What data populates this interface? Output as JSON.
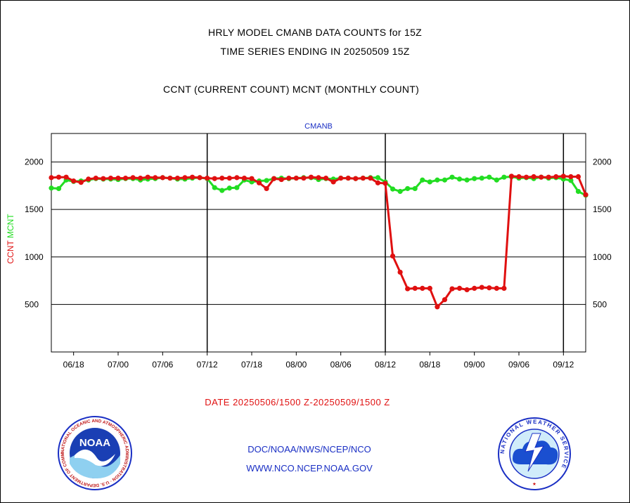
{
  "header": {
    "title_line1": "HRLY MODEL CMANB DATA COUNTS for 15Z",
    "title_line2": "TIME SERIES ENDING IN 20250509 15Z",
    "subtitle": "CCNT (CURRENT COUNT) MCNT (MONTHLY COUNT)"
  },
  "footer": {
    "date_range": "DATE 20250506/1500 Z-20250509/1500 Z",
    "credit_line1": "DOC/NOAA/NWS/NCEP/NCO",
    "credit_line2": "WWW.NCO.NCEP.NOAA.GOV"
  },
  "logos": {
    "noaa_wordmark": "NOAA",
    "noaa_ring_text": "NATIONAL OCEANIC AND ATMOSPHERIC ADMINISTRATION · U.S. DEPARTMENT OF COMMERCE",
    "nws_ring_text": "NATIONAL WEATHER SERVICE"
  },
  "colors": {
    "ccnt": "#e01010",
    "mcnt": "#22dd22",
    "plot_title": "#1a2fc4",
    "text": "#000000"
  },
  "chart_data": {
    "type": "line",
    "title": "CMANB",
    "ylabel_series": [
      "CCNT",
      "MCNT"
    ],
    "ylim": [
      0,
      2300
    ],
    "yticks": [
      500,
      1000,
      1500,
      2000
    ],
    "y_tick_labels": [
      "500",
      "1000",
      "1500",
      "2000"
    ],
    "x_tick_labels": [
      "06/18",
      "07/00",
      "07/06",
      "07/12",
      "07/18",
      "08/00",
      "08/06",
      "08/12",
      "08/18",
      "09/00",
      "09/06",
      "09/12"
    ],
    "x_range_hours": [
      0,
      72
    ],
    "x_tick_hours": [
      3,
      9,
      15,
      21,
      27,
      33,
      39,
      45,
      51,
      57,
      63,
      69
    ],
    "day_boundary_hours": [
      21,
      45,
      69
    ],
    "grid": "horizontal",
    "series": [
      {
        "name": "CCNT",
        "color": "#e01010",
        "x": [
          0,
          1,
          2,
          3,
          4,
          5,
          6,
          7,
          8,
          9,
          10,
          11,
          12,
          13,
          14,
          15,
          16,
          17,
          18,
          19,
          20,
          21,
          22,
          23,
          24,
          25,
          26,
          27,
          28,
          29,
          30,
          31,
          32,
          33,
          34,
          35,
          36,
          37,
          38,
          39,
          40,
          41,
          42,
          43,
          44,
          45,
          46,
          47,
          48,
          49,
          50,
          51,
          52,
          53,
          54,
          55,
          56,
          57,
          58,
          59,
          60,
          61,
          62,
          63,
          64,
          65,
          66,
          67,
          68,
          69,
          70,
          71,
          72
        ],
        "values": [
          1835,
          1840,
          1840,
          1800,
          1785,
          1820,
          1830,
          1825,
          1830,
          1830,
          1830,
          1835,
          1830,
          1840,
          1835,
          1835,
          1830,
          1830,
          1835,
          1840,
          1835,
          1830,
          1825,
          1830,
          1830,
          1835,
          1830,
          1825,
          1780,
          1720,
          1825,
          1815,
          1830,
          1830,
          1830,
          1840,
          1835,
          1830,
          1790,
          1830,
          1830,
          1825,
          1830,
          1830,
          1780,
          1775,
          1010,
          840,
          665,
          670,
          670,
          670,
          475,
          550,
          665,
          670,
          655,
          670,
          680,
          675,
          670,
          670,
          1850,
          1845,
          1840,
          1845,
          1840,
          1840,
          1845,
          1850,
          1845,
          1845,
          1655
        ]
      },
      {
        "name": "MCNT",
        "color": "#22dd22",
        "x": [
          0,
          1,
          2,
          3,
          4,
          5,
          6,
          7,
          8,
          9,
          10,
          11,
          12,
          13,
          14,
          15,
          16,
          17,
          18,
          19,
          20,
          21,
          22,
          23,
          24,
          25,
          26,
          27,
          28,
          29,
          30,
          31,
          32,
          33,
          34,
          35,
          36,
          37,
          38,
          39,
          40,
          41,
          42,
          43,
          44,
          45,
          46,
          47,
          48,
          49,
          50,
          51,
          52,
          53,
          54,
          55,
          56,
          57,
          58,
          59,
          60,
          61,
          62,
          63,
          64,
          65,
          66,
          67,
          68,
          69,
          70,
          71,
          72
        ],
        "values": [
          1725,
          1720,
          1810,
          1795,
          1800,
          1810,
          1825,
          1820,
          1820,
          1815,
          1825,
          1825,
          1810,
          1820,
          1825,
          1835,
          1830,
          1820,
          1820,
          1830,
          1835,
          1825,
          1730,
          1700,
          1725,
          1730,
          1810,
          1790,
          1800,
          1805,
          1825,
          1830,
          1825,
          1830,
          1835,
          1835,
          1815,
          1825,
          1820,
          1830,
          1830,
          1825,
          1830,
          1835,
          1835,
          1790,
          1715,
          1690,
          1720,
          1720,
          1810,
          1790,
          1810,
          1810,
          1840,
          1820,
          1810,
          1825,
          1830,
          1840,
          1810,
          1840,
          1845,
          1830,
          1835,
          1825,
          1840,
          1830,
          1835,
          1820,
          1805,
          1690,
          1650
        ]
      }
    ]
  }
}
